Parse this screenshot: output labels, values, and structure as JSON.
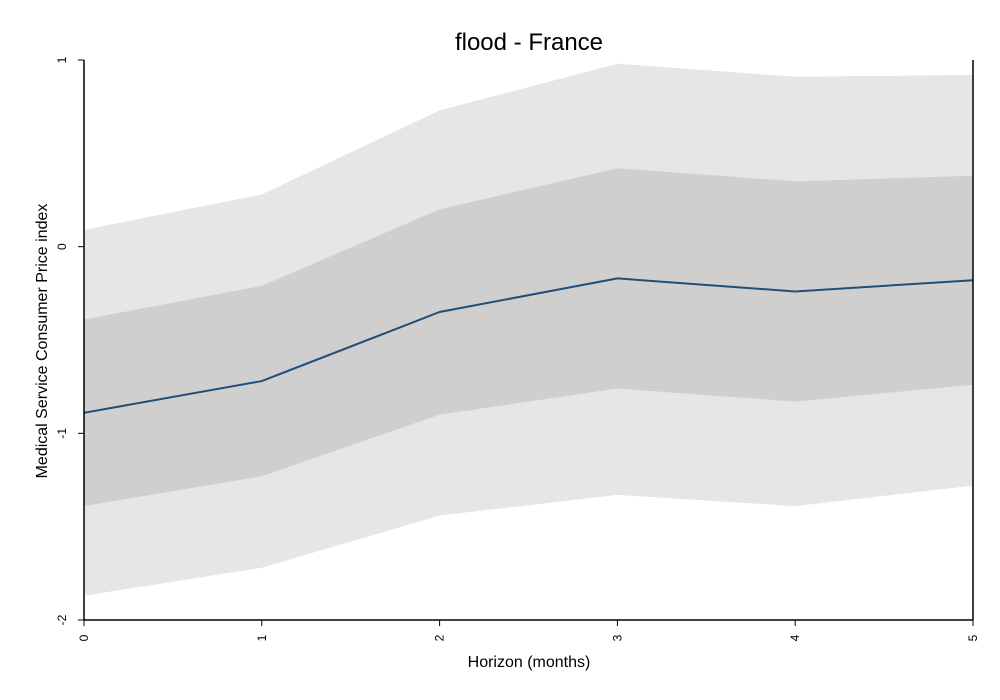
{
  "chart_data": {
    "type": "line",
    "title": "flood - France",
    "xlabel": "Horizon (months)",
    "ylabel": "Medical Service Consumer Price index",
    "x": [
      0,
      1,
      2,
      3,
      4,
      5
    ],
    "xticks": [
      "0",
      "1",
      "2",
      "3",
      "4",
      "5"
    ],
    "yticks": [
      "-2",
      "-1",
      "0",
      "1"
    ],
    "xlim": [
      0,
      5
    ],
    "ylim": [
      -2,
      1
    ],
    "grid": false,
    "series": [
      {
        "values": [
          -0.89,
          -0.72,
          -0.35,
          -0.17,
          -0.24,
          -0.18
        ]
      }
    ],
    "bands": [
      {
        "level": "outer",
        "lower": [
          -1.87,
          -1.72,
          -1.44,
          -1.33,
          -1.39,
          -1.28
        ],
        "upper": [
          0.09,
          0.28,
          0.73,
          0.98,
          0.91,
          0.92
        ]
      },
      {
        "level": "inner",
        "lower": [
          -1.39,
          -1.23,
          -0.9,
          -0.76,
          -0.83,
          -0.74
        ],
        "upper": [
          -0.39,
          -0.21,
          0.2,
          0.42,
          0.35,
          0.38
        ]
      }
    ],
    "colors": {
      "line": "#1f4e79",
      "outer_band": "#e6e6e6",
      "inner_band": "#cfcfcf",
      "axis": "#000000"
    }
  }
}
